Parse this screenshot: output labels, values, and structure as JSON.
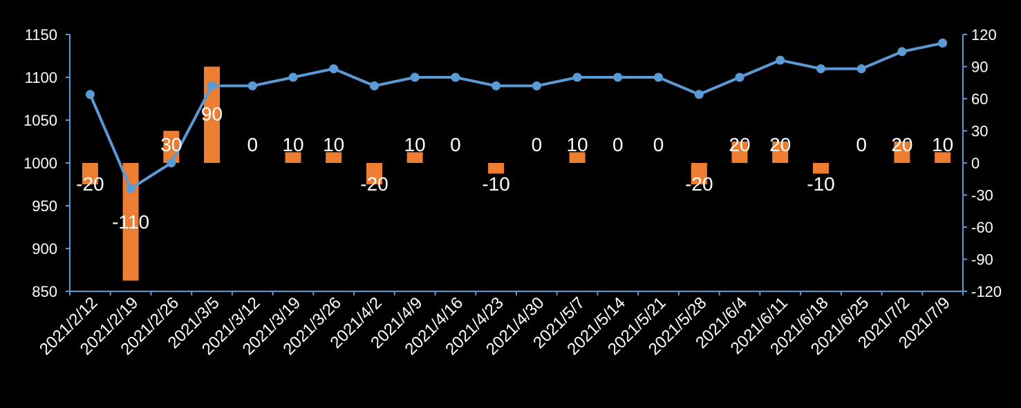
{
  "chart_data": {
    "type": "bar",
    "categories": [
      "2021/2/12",
      "2021/2/19",
      "2021/2/26",
      "2021/3/5",
      "2021/3/12",
      "2021/3/19",
      "2021/3/26",
      "2021/4/2",
      "2021/4/9",
      "2021/4/16",
      "2021/4/23",
      "2021/4/30",
      "2021/5/7",
      "2021/5/14",
      "2021/5/21",
      "2021/5/28",
      "2021/6/4",
      "2021/6/11",
      "2021/6/18",
      "2021/6/25",
      "2021/7/2",
      "2021/7/9"
    ],
    "series": [
      {
        "type": "line",
        "axis": "left",
        "color": "#5B9BD5",
        "values": [
          1080,
          970,
          1000,
          1090,
          1090,
          1100,
          1110,
          1090,
          1100,
          1100,
          1090,
          1090,
          1100,
          1100,
          1100,
          1080,
          1100,
          1120,
          1110,
          1110,
          1130,
          1140
        ]
      },
      {
        "type": "bar",
        "axis": "right",
        "color": "#ED7D31",
        "values": [
          -20,
          -110,
          30,
          90,
          0,
          10,
          10,
          -20,
          10,
          0,
          -10,
          0,
          10,
          0,
          0,
          -20,
          20,
          20,
          -10,
          0,
          20,
          10
        ],
        "data_labels": [
          "-20",
          "-110",
          "30",
          "90",
          "0",
          "10",
          "10",
          "-20",
          "10",
          "0",
          "-10",
          "0",
          "10",
          "0",
          "0",
          "-20",
          "20",
          "20",
          "-10",
          "0",
          "20",
          "10"
        ]
      }
    ],
    "left_axis": {
      "min": 850,
      "max": 1150,
      "step": 50,
      "ticks": [
        "850",
        "900",
        "950",
        "1000",
        "1050",
        "1100",
        "1150"
      ]
    },
    "right_axis": {
      "min": -120,
      "max": 120,
      "step": 30,
      "ticks": [
        "-120",
        "-90",
        "-60",
        "-30",
        "0",
        "30",
        "60",
        "90",
        "120"
      ]
    },
    "title": "",
    "xlabel": "",
    "ylabel": "",
    "grid": false,
    "legend": "none",
    "colors": {
      "background": "#000000",
      "axis": "#5B9BD5",
      "text": "#ffffff"
    }
  }
}
